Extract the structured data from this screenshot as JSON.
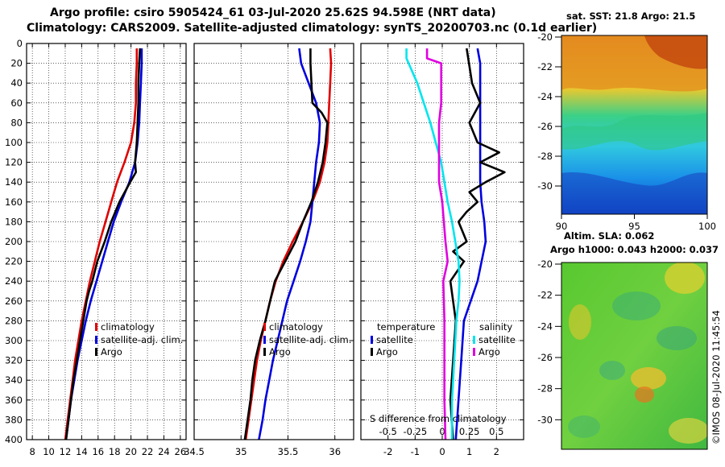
{
  "title_line1": "Argo profile: csiro 5905424_61 03-Jul-2020 25.62S 94.598E (NRT data)",
  "title_line2": "Climatology: CARS2009. Satellite-adjusted climatology: synTS_20200703.nc (0.1d earlier)",
  "colors": {
    "red": "#e00000",
    "blue": "#0000e0",
    "black": "#000000",
    "cyan": "#00e5ee",
    "magenta": "#e000e0"
  },
  "chart_data": [
    {
      "type": "line",
      "name": "temperature-profile",
      "xlim": [
        7.3,
        26.7
      ],
      "ylim": [
        0,
        400
      ],
      "x_ticks": [
        8,
        10,
        12,
        14,
        16,
        18,
        20,
        22,
        24,
        26
      ],
      "y_ticks": [
        0,
        20,
        40,
        60,
        80,
        100,
        120,
        140,
        160,
        180,
        200,
        220,
        240,
        260,
        280,
        300,
        320,
        340,
        360,
        380,
        400
      ],
      "grid": true,
      "legend": [
        "climatology",
        "satellite-adj. clim.",
        "Argo"
      ],
      "series": [
        {
          "name": "climatology",
          "color": "red",
          "depth": [
            5,
            20,
            40,
            60,
            80,
            100,
            120,
            140,
            160,
            180,
            200,
            220,
            240,
            260,
            280,
            300,
            320,
            340,
            360,
            380,
            400
          ],
          "values": [
            20.7,
            20.7,
            20.6,
            20.6,
            20.4,
            20.0,
            19.2,
            18.3,
            17.6,
            16.9,
            16.2,
            15.6,
            15.0,
            14.5,
            14.0,
            13.6,
            13.2,
            12.9,
            12.6,
            12.3,
            12.0
          ]
        },
        {
          "name": "satellite-adj. clim.",
          "color": "blue",
          "depth": [
            5,
            20,
            40,
            60,
            80,
            100,
            120,
            140,
            160,
            180,
            200,
            220,
            240,
            260,
            280,
            300,
            320,
            340,
            360,
            380,
            400
          ],
          "values": [
            21.3,
            21.3,
            21.2,
            21.1,
            21.0,
            20.8,
            20.5,
            19.8,
            18.8,
            17.9,
            17.2,
            16.5,
            15.8,
            15.1,
            14.5,
            14.0,
            13.5,
            13.1,
            12.7,
            12.4,
            12.1
          ]
        },
        {
          "name": "Argo",
          "color": "black",
          "depth": [
            5,
            20,
            40,
            60,
            80,
            100,
            120,
            130,
            140,
            160,
            180,
            200,
            220,
            240,
            250,
            260,
            280,
            300,
            320,
            340,
            360,
            380,
            400
          ],
          "values": [
            21.1,
            21.0,
            20.9,
            20.9,
            20.8,
            20.7,
            20.5,
            20.6,
            19.9,
            18.6,
            17.6,
            16.8,
            15.9,
            15.3,
            14.9,
            14.6,
            14.2,
            13.8,
            13.4,
            13.0,
            12.7,
            12.4,
            12.1
          ]
        }
      ]
    },
    {
      "type": "line",
      "name": "salinity-profile",
      "xlim": [
        34.5,
        36.2
      ],
      "ylim": [
        0,
        400
      ],
      "x_ticks": [
        34.5,
        35,
        35.5,
        36
      ],
      "grid": true,
      "legend": [
        "climatology",
        "satellite-adj. clim.",
        "Argo"
      ],
      "series": [
        {
          "name": "climatology",
          "color": "red",
          "depth": [
            5,
            20,
            40,
            60,
            80,
            100,
            120,
            140,
            160,
            180,
            200,
            220,
            240,
            260,
            280,
            300,
            320,
            340,
            360,
            380,
            400
          ],
          "values": [
            35.95,
            35.96,
            35.95,
            35.94,
            35.93,
            35.92,
            35.89,
            35.84,
            35.76,
            35.66,
            35.55,
            35.45,
            35.37,
            35.31,
            35.26,
            35.21,
            35.17,
            35.14,
            35.11,
            35.08,
            35.05
          ]
        },
        {
          "name": "satellite-adj. clim.",
          "color": "blue",
          "depth": [
            5,
            20,
            40,
            60,
            80,
            100,
            120,
            140,
            160,
            180,
            200,
            220,
            240,
            260,
            280,
            300,
            320,
            340,
            360,
            380,
            400
          ],
          "values": [
            35.62,
            35.64,
            35.72,
            35.8,
            35.84,
            35.83,
            35.8,
            35.78,
            35.76,
            35.74,
            35.69,
            35.63,
            35.56,
            35.49,
            35.44,
            35.39,
            35.34,
            35.3,
            35.26,
            35.23,
            35.19
          ]
        },
        {
          "name": "Argo",
          "color": "black",
          "depth": [
            5,
            20,
            40,
            60,
            70,
            80,
            100,
            120,
            140,
            160,
            180,
            200,
            220,
            240,
            260,
            280,
            300,
            320,
            340,
            360,
            380,
            400
          ],
          "values": [
            35.74,
            35.74,
            35.75,
            35.76,
            35.86,
            35.92,
            35.9,
            35.87,
            35.82,
            35.75,
            35.66,
            35.58,
            35.47,
            35.36,
            35.31,
            35.26,
            35.2,
            35.15,
            35.12,
            35.1,
            35.07,
            35.04
          ]
        }
      ]
    },
    {
      "type": "line",
      "name": "difference-from-climatology",
      "xlim": [
        -3,
        3
      ],
      "ylim": [
        0,
        400
      ],
      "x_ticks": [
        -2,
        -1,
        0,
        1,
        2
      ],
      "x_ticks_salinity": [
        -0.5,
        -0.25,
        0,
        0.25,
        0.5
      ],
      "xlabel": "S difference from climatology",
      "grid": true,
      "legend_temperature_title": "temperature",
      "legend_salinity_title": "salinity",
      "legend": [
        "satellite",
        "Argo"
      ],
      "series": [
        {
          "name": "temperature satellite",
          "color": "blue",
          "depth": [
            5,
            20,
            40,
            60,
            80,
            100,
            120,
            140,
            160,
            180,
            200,
            240,
            280,
            320,
            360,
            400
          ],
          "values": [
            1.3,
            1.4,
            1.4,
            1.4,
            1.4,
            1.4,
            1.4,
            1.4,
            1.45,
            1.55,
            1.6,
            1.3,
            0.8,
            0.7,
            0.6,
            0.5
          ]
        },
        {
          "name": "temperature Argo",
          "color": "black",
          "depth": [
            5,
            40,
            60,
            80,
            100,
            110,
            120,
            130,
            140,
            150,
            160,
            170,
            180,
            200,
            210,
            220,
            240,
            280,
            320,
            360,
            400
          ],
          "values": [
            0.9,
            1.1,
            1.4,
            1.0,
            1.3,
            2.1,
            1.4,
            2.3,
            1.6,
            1.0,
            1.3,
            0.9,
            0.6,
            0.9,
            0.4,
            0.8,
            0.3,
            0.5,
            0.4,
            0.3,
            0.4
          ]
        },
        {
          "name": "salinity satellite",
          "color": "cyan",
          "depth": [
            5,
            15,
            20,
            40,
            60,
            80,
            100,
            120,
            140,
            160,
            180,
            200,
            220,
            240,
            260,
            280,
            300,
            320,
            340,
            360,
            400
          ],
          "values": [
            -0.33,
            -0.33,
            -0.31,
            -0.23,
            -0.17,
            -0.11,
            -0.06,
            -0.01,
            0.02,
            0.05,
            0.09,
            0.12,
            0.15,
            0.16,
            0.15,
            0.13,
            0.12,
            0.11,
            0.1,
            0.09,
            0.09
          ]
        },
        {
          "name": "salinity Argo",
          "color": "magenta",
          "depth": [
            5,
            15,
            20,
            40,
            60,
            80,
            100,
            140,
            160,
            200,
            220,
            240,
            280,
            320,
            360,
            400
          ],
          "values": [
            -0.14,
            -0.14,
            -0.01,
            -0.01,
            -0.01,
            -0.03,
            -0.03,
            -0.03,
            0.0,
            0.03,
            0.05,
            0.01,
            0.02,
            0.02,
            0.02,
            0.03
          ]
        }
      ]
    }
  ],
  "sst_map": {
    "title": "sat. SST: 21.8 Argo: 21.5",
    "x_ticks": [
      "90",
      "95",
      "100"
    ],
    "y_ticks": [
      "-20",
      "-22",
      "-24",
      "-26",
      "-28",
      "-30"
    ]
  },
  "sla_map": {
    "title1": "Altim. SLA: 0.062",
    "title2": "Argo h1000: 0.043 h2000: 0.037",
    "y_ticks": [
      "-20",
      "-22",
      "-24",
      "-26",
      "-28",
      "-30"
    ]
  },
  "footer_text": "©IMOS 08-Jul-2020 11:45:54"
}
